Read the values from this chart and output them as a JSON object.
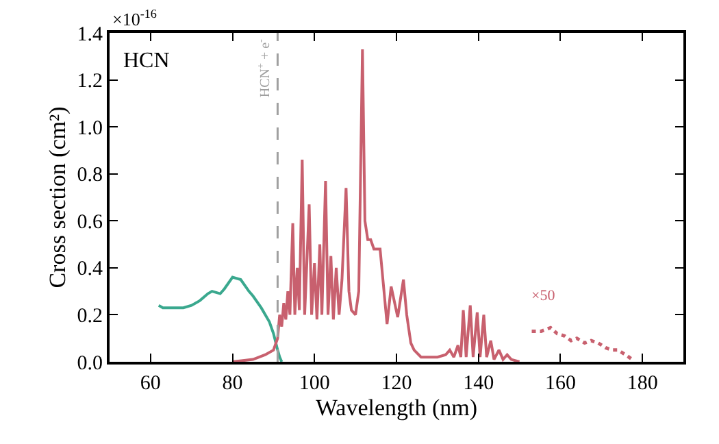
{
  "chart_data": {
    "type": "line",
    "xlabel": "Wavelength (nm)",
    "ylabel": "Cross section (cm²)",
    "xlim": [
      50,
      190
    ],
    "xticks": [
      60,
      80,
      100,
      120,
      140,
      160,
      180
    ],
    "ylim": [
      0,
      1.4
    ],
    "yticks": [
      {
        "value": 0,
        "label": "0.0"
      },
      0.2,
      0.4,
      0.6,
      0.8,
      {
        "value": 1.0,
        "label": "1.0"
      },
      1.2,
      1.4
    ],
    "marker": "none",
    "annotations": [
      "×10$^{-16}$",
      "HCN",
      "×50"
    ],
    "ref_lines": [
      {
        "axis": "x",
        "value": 91,
        "label": "HCN$^{+}$ + e$^{-}$",
        "color": "#a0a0a0",
        "line_style": "dashed"
      }
    ],
    "series": [
      {
        "color": "#3aa88e",
        "line_style": "solid",
        "x": [
          62,
          63,
          65,
          68,
          70,
          72,
          74,
          75,
          77,
          78,
          80,
          82,
          84,
          85,
          87,
          88,
          89,
          90,
          91,
          91.5,
          92
        ],
        "values": [
          0.24,
          0.23,
          0.23,
          0.23,
          0.24,
          0.26,
          0.29,
          0.3,
          0.29,
          0.31,
          0.36,
          0.35,
          0.3,
          0.28,
          0.23,
          0.2,
          0.17,
          0.12,
          0.05,
          0.02,
          0.0
        ]
      },
      {
        "color": "#c8606e",
        "line_style": "solid",
        "x": [
          80,
          85,
          88,
          90,
          91,
          91.5,
          92,
          92.5,
          93,
          93.5,
          94,
          94.7,
          95.2,
          95.8,
          96.3,
          97,
          97.6,
          98.2,
          98.7,
          99.3,
          100,
          100.6,
          101.3,
          101.8,
          102.7,
          103.3,
          104,
          104.6,
          105.3,
          106,
          106.7,
          107.7,
          108.4,
          109,
          110,
          110.8,
          111.7,
          112.3,
          113,
          113.7,
          114.5,
          116,
          117.7,
          118.7,
          120.3,
          121.7,
          122.5,
          123.5,
          124.3,
          126,
          130,
          132,
          133,
          134,
          135,
          135.7,
          136.3,
          137,
          138,
          138.7,
          139.7,
          140.4,
          141.3,
          142,
          143,
          143.8,
          145,
          146,
          147,
          148,
          150
        ],
        "values": [
          0.0,
          0.01,
          0.03,
          0.05,
          0.1,
          0.2,
          0.15,
          0.25,
          0.18,
          0.3,
          0.2,
          0.59,
          0.2,
          0.4,
          0.22,
          0.86,
          0.2,
          0.45,
          0.67,
          0.2,
          0.42,
          0.18,
          0.5,
          0.2,
          0.77,
          0.2,
          0.45,
          0.18,
          0.4,
          0.2,
          0.35,
          0.74,
          0.3,
          0.22,
          0.2,
          0.3,
          1.33,
          0.6,
          0.52,
          0.52,
          0.48,
          0.48,
          0.16,
          0.32,
          0.19,
          0.35,
          0.2,
          0.08,
          0.05,
          0.02,
          0.02,
          0.03,
          0.05,
          0.02,
          0.07,
          0.02,
          0.22,
          0.02,
          0.24,
          0.02,
          0.21,
          0.02,
          0.2,
          0.02,
          0.09,
          0.01,
          0.05,
          0.01,
          0.03,
          0.01,
          0.0
        ]
      },
      {
        "color": "#c8606e",
        "line_style": "dotted",
        "x": [
          153,
          155.3,
          157.6,
          159.2,
          161,
          162.6,
          164,
          165.9,
          167.5,
          169.2,
          171,
          172.6,
          174,
          175.9,
          177.5
        ],
        "values": [
          0.13,
          0.13,
          0.145,
          0.12,
          0.11,
          0.09,
          0.1,
          0.08,
          0.09,
          0.08,
          0.06,
          0.05,
          0.05,
          0.03,
          0.01
        ]
      }
    ]
  }
}
